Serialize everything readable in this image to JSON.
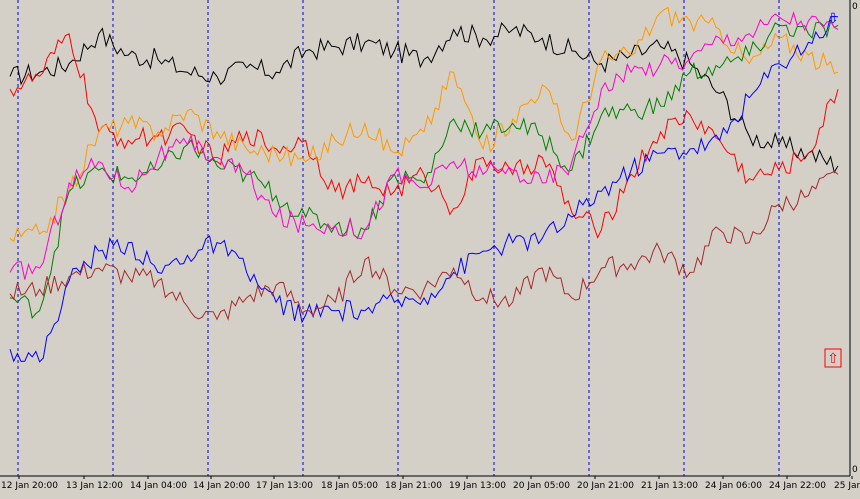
{
  "colors": {
    "background": "#d4d0c8",
    "grid": "#0000cc",
    "axis": "#000000"
  },
  "chart_data": {
    "type": "line",
    "grid": true,
    "legend": "none",
    "x_tick_labels": [
      "12 Jan 20:00",
      "13 Jan 12:00",
      "14 Jan 04:00",
      "14 Jan 20:00",
      "17 Jan 13:00",
      "18 Jan 05:00",
      "18 Jan 21:00",
      "19 Jan 13:00",
      "20 Jan 05:00",
      "20 Jan 21:00",
      "21 Jan 13:00",
      "24 Jan 06:00",
      "24 Jan 22:00",
      "25 Jan"
    ],
    "right_scale": {
      "top_label": "0",
      "bottom_label": "0"
    },
    "markers": [
      {
        "name": "down-arrow",
        "symbol": "⇩",
        "color": "#0000ff",
        "at_index": 112
      },
      {
        "name": "up-arrow",
        "symbol": "⇧",
        "color": "#ff0000",
        "at_index": 112
      }
    ],
    "series_x": [
      0,
      4,
      8,
      12,
      16,
      20,
      24,
      28,
      32,
      36,
      40,
      44,
      48,
      52,
      56,
      60,
      64,
      68,
      72,
      76,
      80,
      84,
      88,
      92,
      96,
      100,
      104,
      108,
      112
    ],
    "series": [
      {
        "color": "#000000",
        "values": [
          83,
          84,
          86,
          93,
          88,
          87,
          84,
          83,
          85,
          84,
          89,
          90,
          91,
          89,
          87,
          94,
          92,
          94,
          92,
          89,
          86,
          88,
          90,
          86,
          79,
          69,
          67,
          65,
          62
        ]
      },
      {
        "color": "#ff0000",
        "values": [
          80,
          83,
          93,
          70,
          68,
          69,
          70,
          63,
          70,
          66,
          68,
          56,
          58,
          56,
          60,
          52,
          64,
          60,
          64,
          51,
          47,
          60,
          70,
          74,
          68,
          59,
          61,
          65,
          80
        ]
      },
      {
        "color": "#ff9900",
        "values": [
          45,
          46,
          56,
          70,
          72,
          70,
          75,
          70,
          66,
          65,
          63,
          68,
          72,
          65,
          70,
          84,
          66,
          73,
          81,
          68,
          87,
          88,
          98,
          96,
          94,
          86,
          92,
          88,
          84
        ]
      },
      {
        "color": "#008000",
        "values": [
          31,
          28,
          56,
          61,
          59,
          61,
          67,
          62,
          60,
          55,
          50,
          48,
          47,
          60,
          58,
          73,
          70,
          72,
          69,
          61,
          74,
          75,
          76,
          84,
          85,
          88,
          95,
          93,
          95
        ]
      },
      {
        "color": "#ff00cc",
        "values": [
          37,
          38,
          58,
          63,
          57,
          64,
          67,
          64,
          60,
          50,
          48,
          48,
          47,
          60,
          57,
          63,
          60,
          61,
          58,
          63,
          80,
          84,
          86,
          87,
          92,
          93,
          97,
          96,
          94
        ]
      },
      {
        "color": "#0000ff",
        "values": [
          19,
          16,
          35,
          42,
          44,
          37,
          41,
          44,
          37,
          30,
          27,
          28,
          28,
          30,
          31,
          37,
          42,
          44,
          45,
          50,
          56,
          61,
          65,
          66,
          68,
          78,
          86,
          91,
          97
        ]
      },
      {
        "color": "#a52a2a",
        "values": [
          32,
          33,
          36,
          38,
          36,
          35,
          29,
          26,
          31,
          34,
          28,
          30,
          40,
          33,
          33,
          38,
          31,
          30,
          38,
          31,
          38,
          39,
          42,
          37,
          47,
          44,
          53,
          55,
          60
        ]
      }
    ]
  }
}
